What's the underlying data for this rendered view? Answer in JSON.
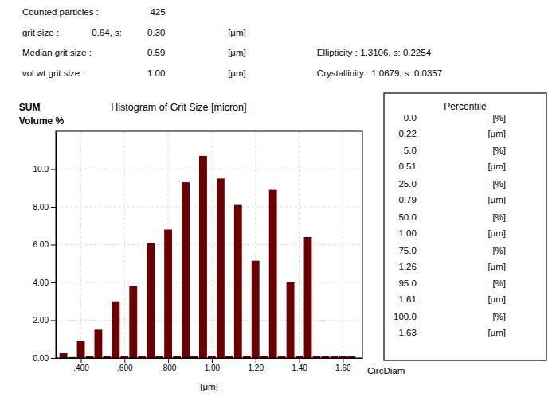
{
  "chart_data": {
    "type": "bar",
    "title": "Histogram of Grit Size [micron]",
    "ylabel": "Volume %",
    "xlabel": "[μm]",
    "annotations": [
      "SUM",
      "CircDiam"
    ],
    "header": [
      [
        "Counted particles :",
        "425"
      ],
      [
        "grit size :",
        "0.64, s:",
        "0.30",
        "[μm]"
      ],
      [
        "Median  grit size :",
        "0.59",
        "[μm]",
        "Ellipticity : 1.3106, s: 0.2254"
      ],
      [
        "vol.wt  grit size :",
        "1.00",
        "[μm]",
        "Crystallinity : 1.0679, s: 0.0357"
      ]
    ],
    "percentiles": {
      "title": "Percentile",
      "rows": [
        {
          "pct": "0.0",
          "unit1": "[%]",
          "val": "0.22",
          "unit2": "[μm]"
        },
        {
          "pct": "5.0",
          "unit1": "[%]",
          "val": "0.51",
          "unit2": "[μm]"
        },
        {
          "pct": "25.0",
          "unit1": "[%]",
          "val": "0.79",
          "unit2": "[μm]"
        },
        {
          "pct": "50.0",
          "unit1": "[%]",
          "val": "1.00",
          "unit2": "[μm]"
        },
        {
          "pct": "75.0",
          "unit1": "[%]",
          "val": "1.26",
          "unit2": "[μm]"
        },
        {
          "pct": "95.0",
          "unit1": "[%]",
          "val": "1.61",
          "unit2": "[μm]"
        },
        {
          "pct": "100.0",
          "unit1": "[%]",
          "val": "1.63",
          "unit2": "[μm]"
        }
      ]
    },
    "x": [
      0.32,
      0.36,
      0.4,
      0.44,
      0.48,
      0.52,
      0.56,
      0.6,
      0.64,
      0.68,
      0.72,
      0.76,
      0.8,
      0.84,
      0.88,
      0.92,
      0.96,
      1.0,
      1.04,
      1.08,
      1.12,
      1.16,
      1.2,
      1.24,
      1.28,
      1.32,
      1.36,
      1.4,
      1.44,
      1.48,
      1.52,
      1.56,
      1.6,
      1.64
    ],
    "values": [
      0.25,
      0.05,
      0.9,
      0.1,
      1.5,
      0.1,
      3.0,
      0.1,
      3.8,
      0.1,
      6.1,
      0.1,
      6.8,
      0.1,
      9.3,
      0.1,
      10.7,
      0.1,
      9.5,
      0.1,
      8.1,
      0.1,
      5.15,
      0.1,
      8.9,
      0.1,
      4.0,
      0.1,
      6.4,
      0.1,
      0.1,
      0.1,
      0.1,
      0.1
    ],
    "color": "#6B0000",
    "xlim": [
      0.285,
      1.69
    ],
    "ylim": [
      0,
      12
    ],
    "xticks": [
      {
        "value": 0.4,
        "label": ".400"
      },
      {
        "value": 0.6,
        "label": ".600"
      },
      {
        "value": 0.8,
        "label": ".800"
      },
      {
        "value": 1.0,
        "label": "1.00"
      },
      {
        "value": 1.2,
        "label": "1.20"
      },
      {
        "value": 1.4,
        "label": "1.40"
      },
      {
        "value": 1.6,
        "label": "1.60"
      }
    ],
    "yticks": [
      {
        "value": 0,
        "label": "0.00"
      },
      {
        "value": 2,
        "label": "2.00"
      },
      {
        "value": 4,
        "label": "4.00"
      },
      {
        "value": 6,
        "label": "6.00"
      },
      {
        "value": 8,
        "label": "8.00"
      },
      {
        "value": 10,
        "label": "10.0"
      }
    ],
    "grid": true
  }
}
